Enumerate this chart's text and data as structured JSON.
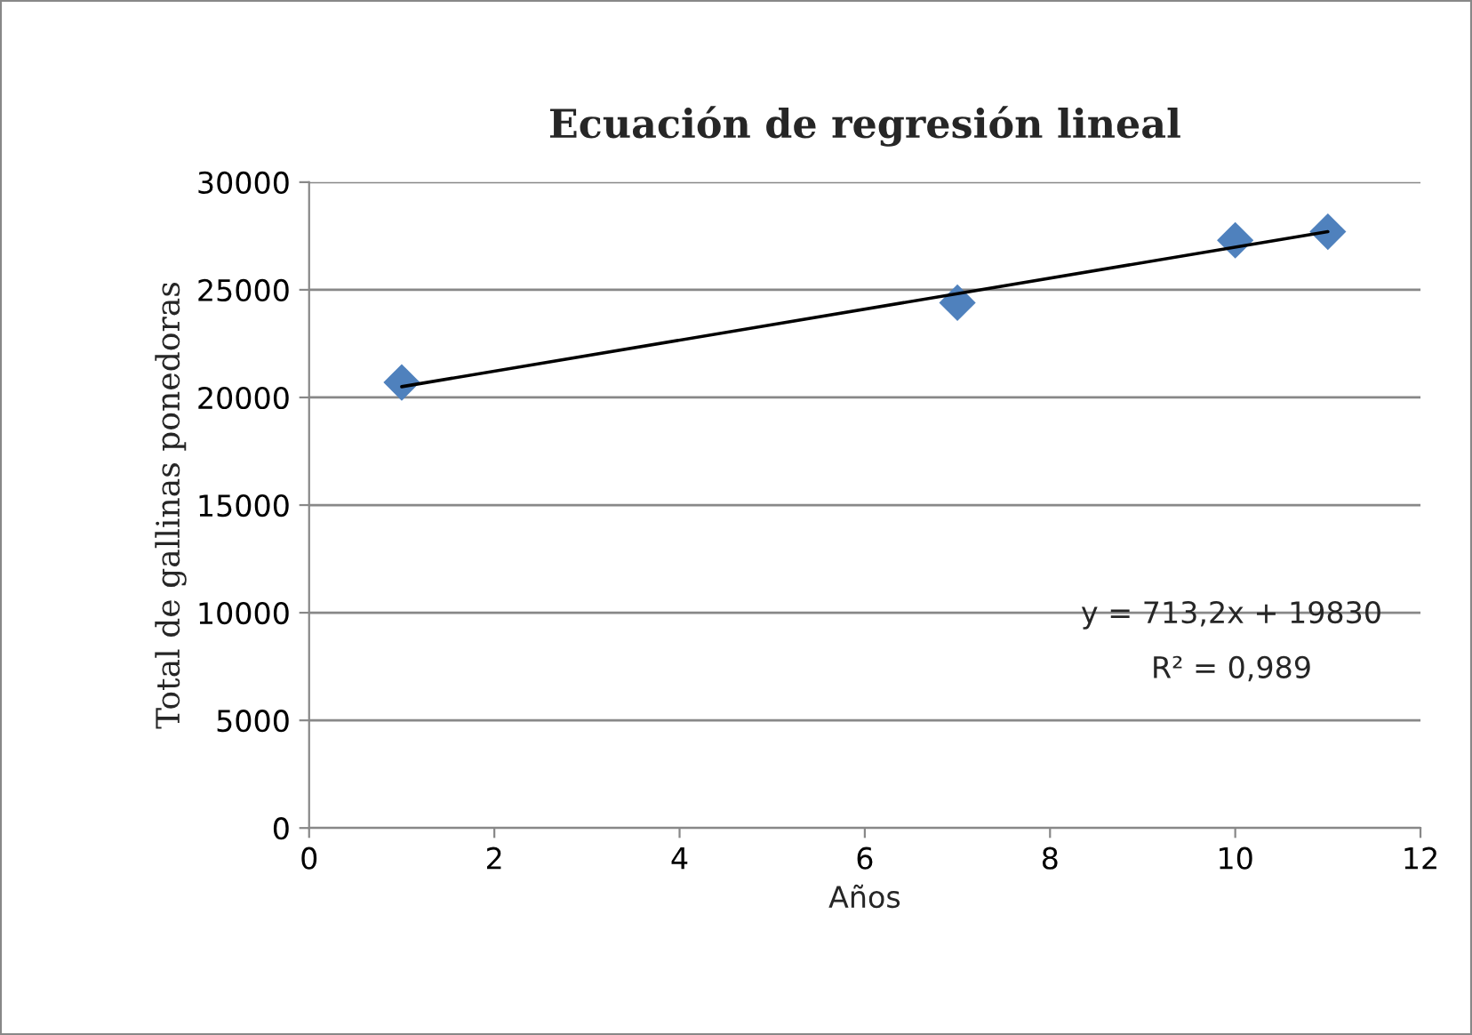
{
  "chart_data": {
    "type": "scatter",
    "title": "Ecuación de regresión lineal",
    "xlabel": "Años",
    "ylabel": "Total de gallinas ponedoras",
    "series": [
      {
        "color": "#4f81bd",
        "marker": "diamond",
        "x": [
          1,
          7,
          10,
          11
        ],
        "values": [
          20700,
          24400,
          27300,
          27700
        ]
      },
      {
        "type": "line",
        "color": "#000000",
        "marker": "none",
        "line_style": "solid",
        "x": [
          1,
          11
        ],
        "values": [
          20500,
          27700
        ]
      }
    ],
    "annotations": [
      "y = 713,2x + 19830",
      "R² = 0,989"
    ],
    "xlim": [
      0,
      12
    ],
    "xticks": [
      0,
      2,
      4,
      6,
      8,
      10,
      12
    ],
    "ylim": [
      0,
      30000
    ],
    "yticks": [
      0,
      5000,
      10000,
      15000,
      20000,
      25000,
      30000
    ],
    "grid": "y",
    "legend": false
  }
}
